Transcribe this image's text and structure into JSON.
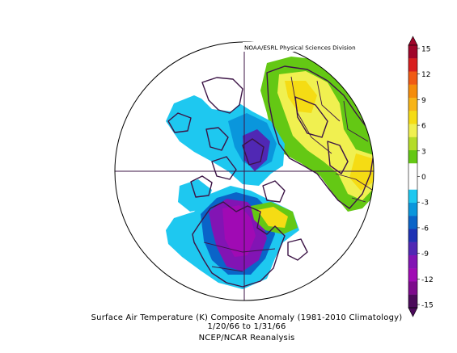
{
  "header": {
    "attribution": "NOAA/ESRL Physical Sciences Division"
  },
  "caption": {
    "title": "Surface Air Temperature (K) Composite Anomaly (1981-2010 Climatology)",
    "dates": "1/20/66  to 1/31/66",
    "source": "NCEP/NCAR Reanalysis"
  },
  "colorbar": {
    "labels": [
      "15",
      "12",
      "9",
      "6",
      "3",
      "0",
      "-3",
      "-6",
      "-9",
      "-12",
      "-15"
    ],
    "colors": [
      "#a0052a",
      "#d81e1e",
      "#f05a14",
      "#f58c0a",
      "#f7b417",
      "#f5dc14",
      "#f0f050",
      "#b4dc28",
      "#64c814",
      "#ffffff",
      "#ffffff",
      "#1ec8f0",
      "#0a96dc",
      "#0a64c8",
      "#1e32b4",
      "#5028b4",
      "#8214b4",
      "#a00ab4",
      "#7d0a8c",
      "#4b0a5a"
    ]
  }
}
